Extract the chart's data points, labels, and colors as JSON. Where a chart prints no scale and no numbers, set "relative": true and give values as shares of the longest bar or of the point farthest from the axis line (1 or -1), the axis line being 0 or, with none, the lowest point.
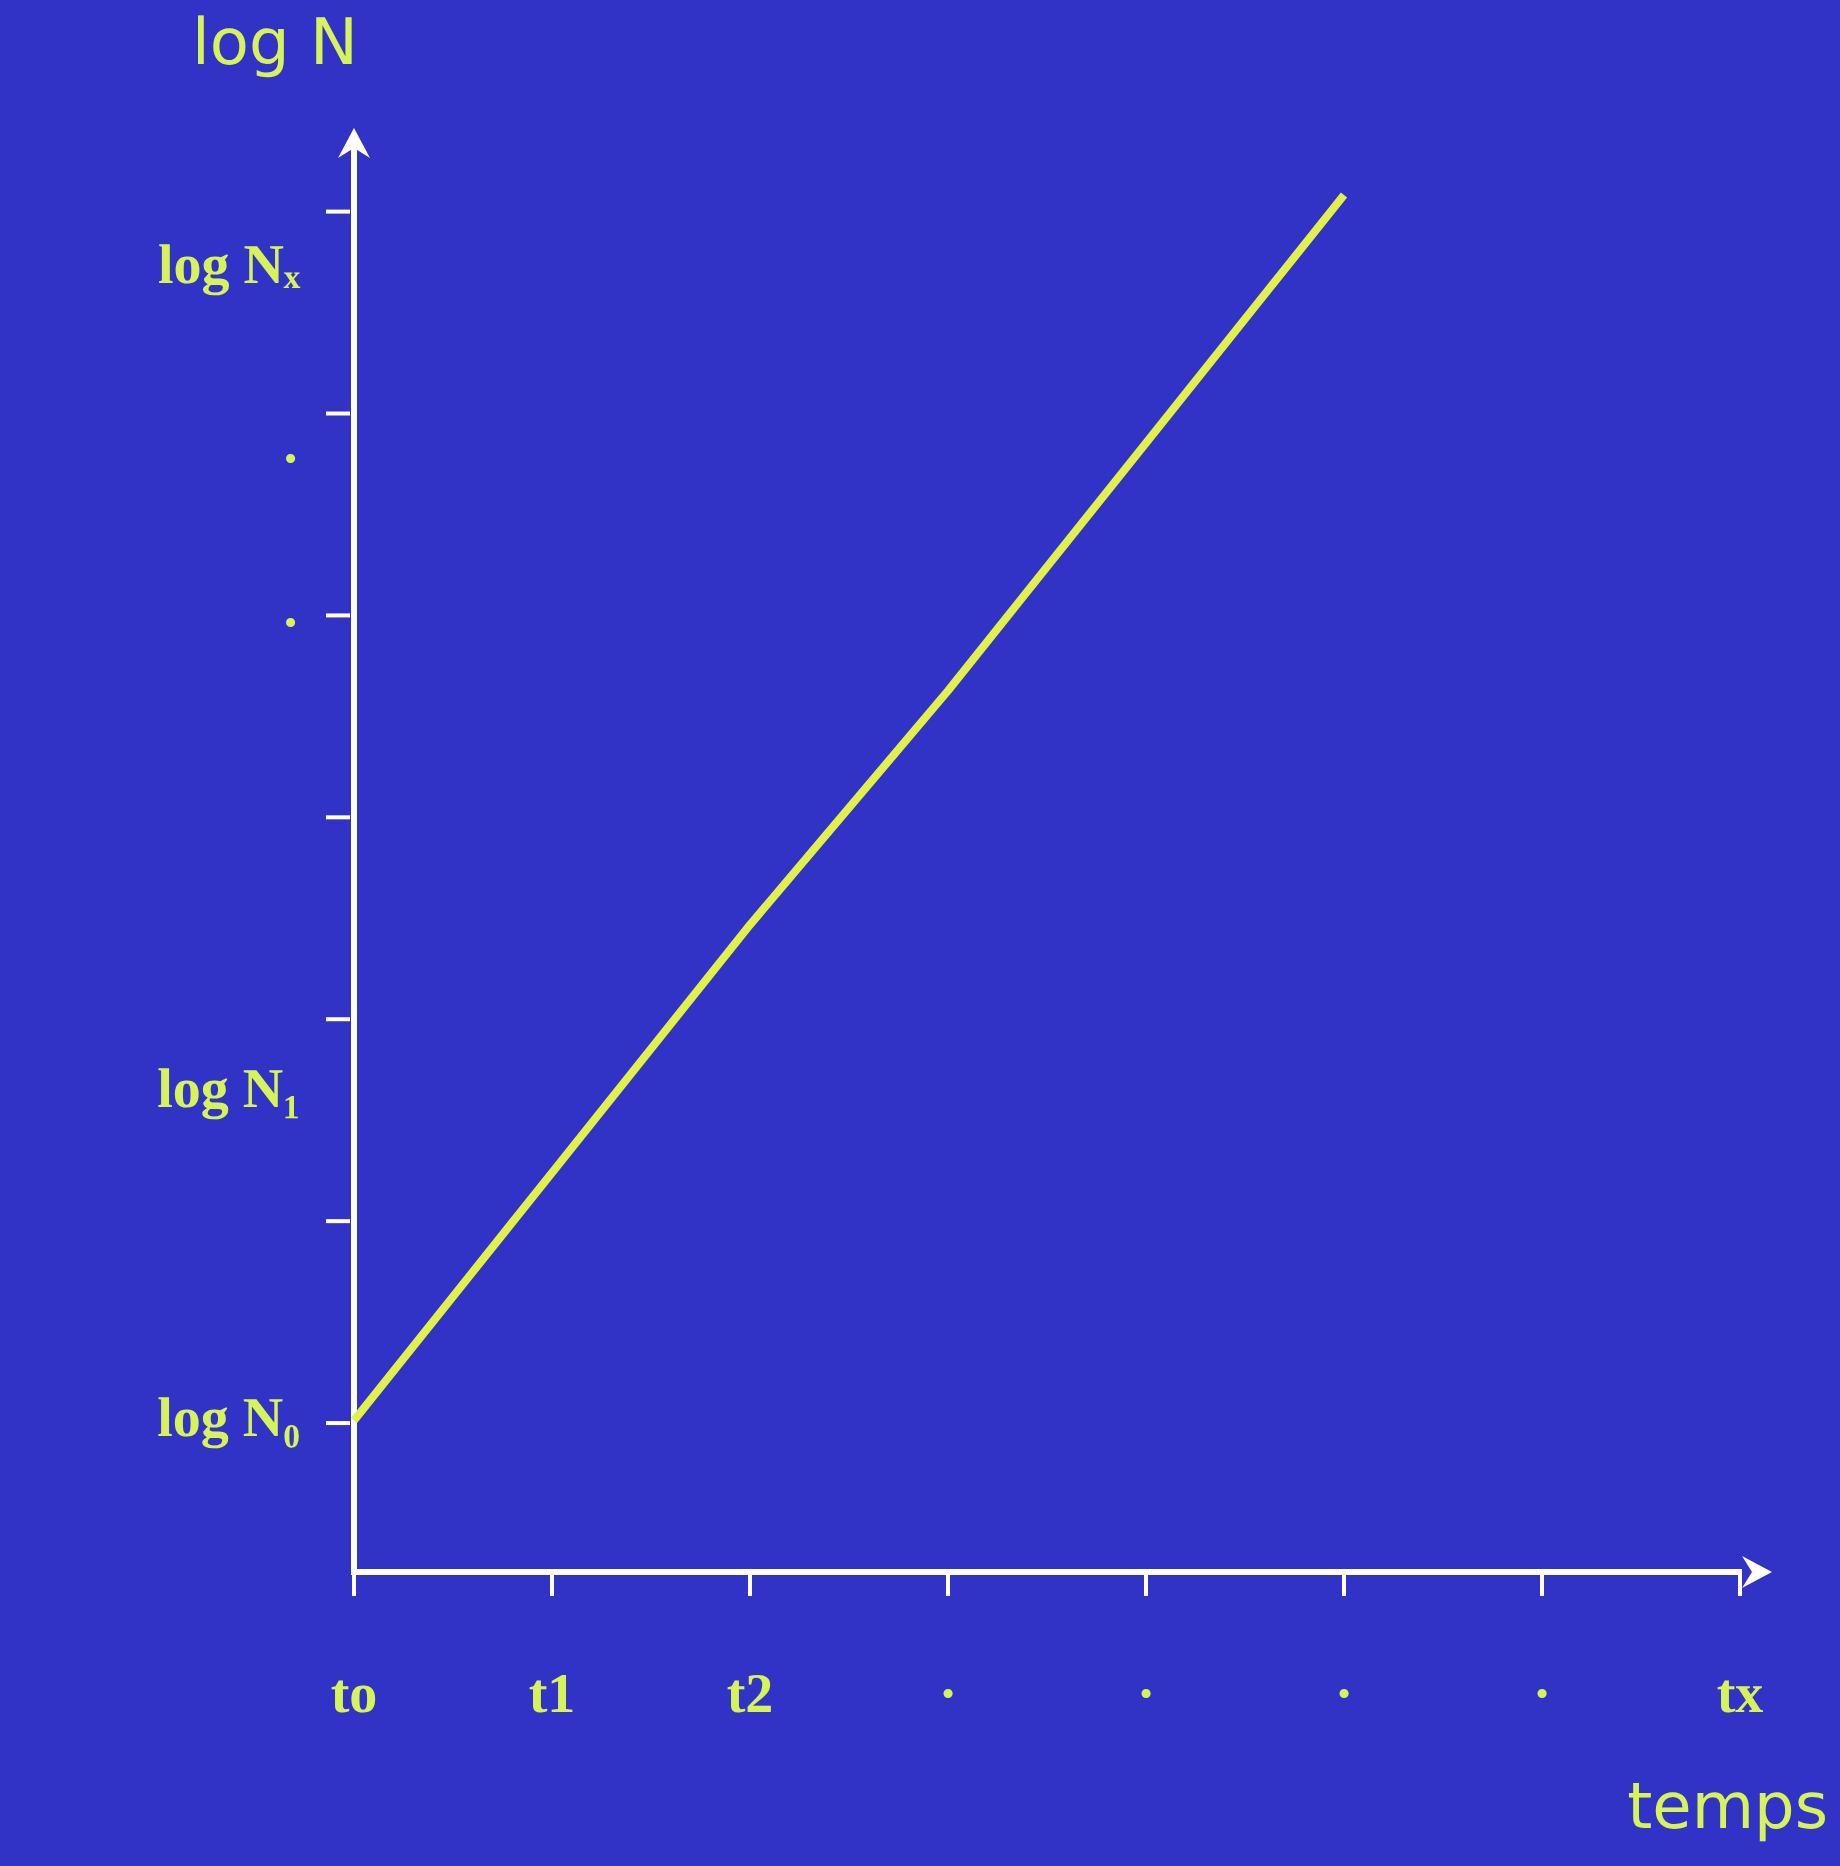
{
  "chart_data": {
    "type": "line",
    "xlabel": "temps",
    "ylabel": "log N",
    "relative": true,
    "categories": [
      "to",
      "t1",
      "t2",
      "·",
      "·",
      "·",
      "·",
      "tx"
    ],
    "series": [
      {
        "color": "#e2f04a",
        "values": [
          0.11,
          0.29,
          0.47,
          0.64,
          0.82,
          1.0,
          null,
          null
        ]
      }
    ],
    "annotations": [
      "log N₀",
      "log N₁",
      "·",
      "·",
      "log Nₓ"
    ],
    "grid": false,
    "legend": false
  }
}
